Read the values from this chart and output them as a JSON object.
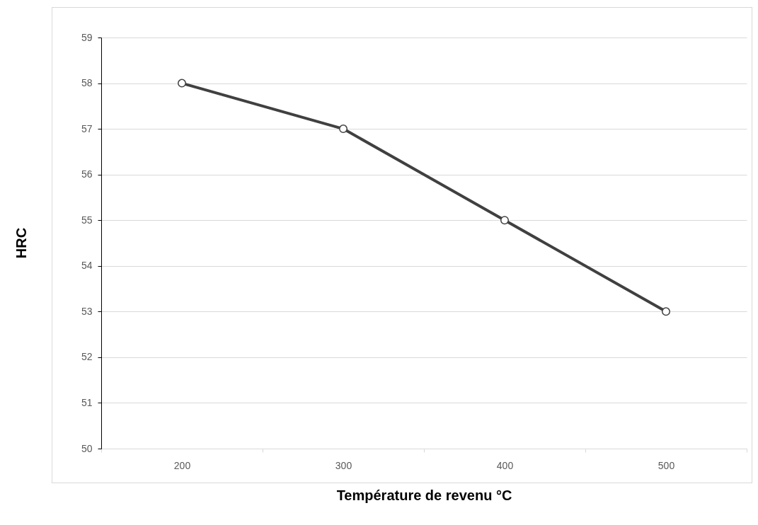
{
  "chart_data": {
    "type": "line",
    "xlabel": "Température de revenu °C",
    "ylabel": "HRC",
    "categories": [
      "200",
      "300",
      "400",
      "500"
    ],
    "series": [
      {
        "color": "#404040",
        "values": [
          58,
          57,
          55,
          53
        ]
      }
    ],
    "ylim": [
      50,
      59
    ],
    "yticks": [
      50,
      51,
      52,
      53,
      54,
      55,
      56,
      57,
      58,
      59
    ],
    "grid": "y",
    "marker": "circle",
    "line_style": "solid"
  }
}
